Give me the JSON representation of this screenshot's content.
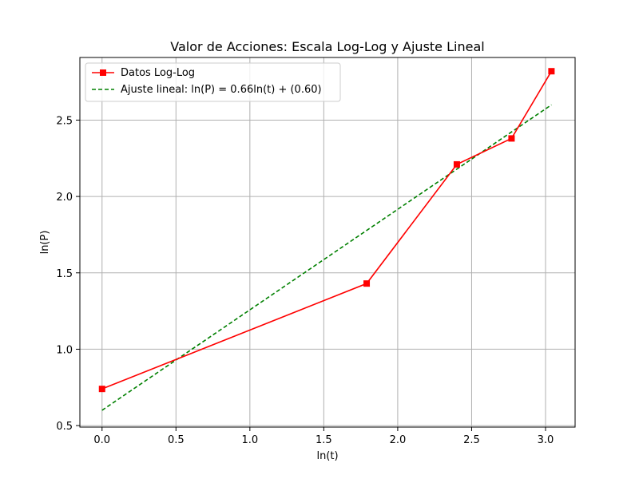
{
  "chart_data": {
    "type": "line",
    "title": "Valor de Acciones: Escala Log-Log y Ajuste Lineal",
    "xlabel": "ln(t)",
    "ylabel": "ln(P)",
    "xlim": [
      -0.15,
      3.2
    ],
    "ylim": [
      0.49,
      2.91
    ],
    "xticks": [
      0.0,
      0.5,
      1.0,
      1.5,
      2.0,
      2.5,
      3.0
    ],
    "xtick_labels": [
      "0.0",
      "0.5",
      "1.0",
      "1.5",
      "2.0",
      "2.5",
      "3.0"
    ],
    "yticks": [
      0.5,
      1.0,
      1.5,
      2.0,
      2.5
    ],
    "ytick_labels": [
      "0.5",
      "1.0",
      "1.5",
      "2.0",
      "2.5"
    ],
    "grid": true,
    "legend_position": "top-left",
    "series": [
      {
        "name": "Datos Log-Log",
        "color": "#ff0000",
        "style": "solid",
        "marker": "square",
        "x": [
          0.0,
          1.79,
          2.4,
          2.77,
          3.04
        ],
        "y": [
          0.74,
          1.43,
          2.21,
          2.38,
          2.82
        ]
      },
      {
        "name": "Ajuste lineal: ln(P) = 0.66ln(t) + (0.60)",
        "color": "#008000",
        "style": "dashed",
        "marker": "none",
        "x": [
          0.0,
          3.04
        ],
        "y": [
          0.6,
          2.6
        ]
      }
    ]
  }
}
